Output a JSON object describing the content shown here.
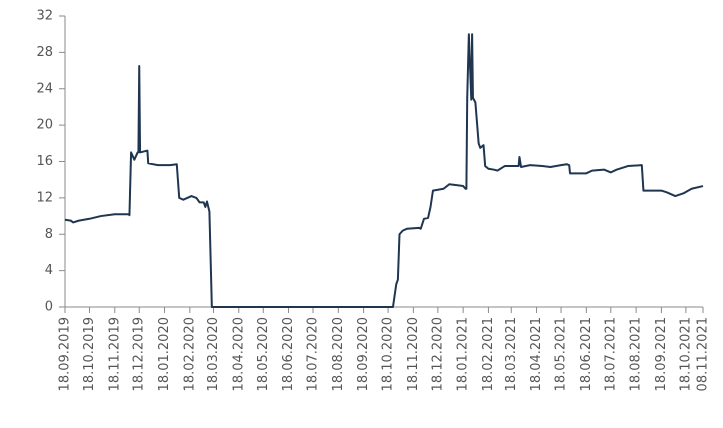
{
  "chart_data": {
    "type": "line",
    "series": [
      {
        "color": "#1f3550",
        "x": [
          "18.09.2019",
          "25.09.2019",
          "28.09.2019",
          "05.10.2019",
          "18.10.2019",
          "01.11.2019",
          "18.11.2019",
          "25.11.2019",
          "05.12.2019",
          "06.12.2019",
          "08.12.2019",
          "12.12.2019",
          "16.12.2019",
          "17.12.2019",
          "18.12.2019",
          "19.12.2019",
          "28.12.2019",
          "29.12.2019",
          "10.01.2020",
          "25.01.2020",
          "02.02.2020",
          "05.02.2020",
          "10.02.2020",
          "20.02.2020",
          "26.02.2020",
          "01.03.2020",
          "06.03.2020",
          "08.03.2020",
          "10.03.2020",
          "13.03.2020",
          "16.03.2020",
          "19.03.2020",
          "01.05.2020",
          "01.08.2020",
          "24.10.2020",
          "28.10.2020",
          "30.10.2020",
          "01.11.2020",
          "05.11.2020",
          "10.11.2020",
          "25.11.2020",
          "27.11.2020",
          "01.12.2020",
          "06.12.2020",
          "09.12.2020",
          "12.12.2020",
          "25.12.2020",
          "01.01.2021",
          "10.01.2021",
          "18.01.2021",
          "21.01.2021",
          "22.01.2021",
          "23.01.2021",
          "25.01.2021",
          "28.01.2021",
          "29.01.2021",
          "30.01.2021",
          "02.02.2021",
          "06.02.2021",
          "08.02.2021",
          "12.02.2021",
          "14.02.2021",
          "18.02.2021",
          "25.02.2021",
          "01.03.2021",
          "10.03.2021",
          "22.03.2021",
          "27.03.2021",
          "28.03.2021",
          "30.03.2021",
          "10.04.2021",
          "25.04.2021",
          "05.05.2021",
          "18.05.2021",
          "25.05.2021",
          "28.05.2021",
          "29.05.2021",
          "18.06.2021",
          "25.06.2021",
          "10.07.2021",
          "18.07.2021",
          "25.07.2021",
          "08.08.2021",
          "25.08.2021",
          "27.08.2021",
          "18.09.2021",
          "25.09.2021",
          "05.10.2021",
          "15.10.2021",
          "25.10.2021",
          "08.11.2021"
        ],
        "values": [
          9.6,
          9.5,
          9.3,
          9.5,
          9.7,
          10.0,
          10.2,
          10.2,
          10.2,
          10.1,
          17.0,
          16.2,
          17.0,
          17.0,
          26.5,
          17.0,
          17.2,
          15.8,
          15.6,
          15.6,
          15.7,
          12.0,
          11.8,
          12.2,
          12.0,
          11.5,
          11.5,
          11.0,
          11.6,
          10.5,
          0,
          0,
          0,
          0,
          0,
          2.5,
          3.0,
          8.0,
          8.4,
          8.6,
          8.7,
          8.6,
          9.7,
          9.8,
          11.0,
          12.8,
          13.0,
          13.5,
          13.4,
          13.3,
          13.0,
          13.0,
          23.0,
          30.0,
          22.8,
          30.0,
          23.0,
          22.5,
          18.0,
          17.5,
          17.8,
          15.5,
          15.2,
          15.1,
          15.0,
          15.5,
          15.5,
          15.5,
          16.5,
          15.4,
          15.6,
          15.5,
          15.4,
          15.6,
          15.7,
          15.6,
          14.7,
          14.7,
          15.0,
          15.1,
          14.8,
          15.1,
          15.5,
          15.6,
          12.8,
          12.8,
          12.6,
          12.2,
          12.5,
          13.0,
          13.3
        ]
      }
    ],
    "xlim": [
      "18.09.2019",
      "08.11.2021"
    ],
    "xticks": [
      "18.09.2019",
      "18.10.2019",
      "18.11.2019",
      "18.12.2019",
      "18.01.2020",
      "18.02.2020",
      "18.03.2020",
      "18.04.2020",
      "18.05.2020",
      "18.06.2020",
      "18.07.2020",
      "18.08.2020",
      "18.09.2020",
      "18.10.2020",
      "18.11.2020",
      "18.12.2020",
      "18.01.2021",
      "18.02.2021",
      "18.03.2021",
      "18.04.2021",
      "18.05.2021",
      "18.06.2021",
      "18.07.2021",
      "18.08.2021",
      "18.09.2021",
      "18.10.2021",
      "08.11.2021"
    ],
    "ylim": [
      0,
      32
    ],
    "yticks": [
      0,
      4,
      8,
      12,
      16,
      20,
      24,
      28,
      32
    ]
  }
}
